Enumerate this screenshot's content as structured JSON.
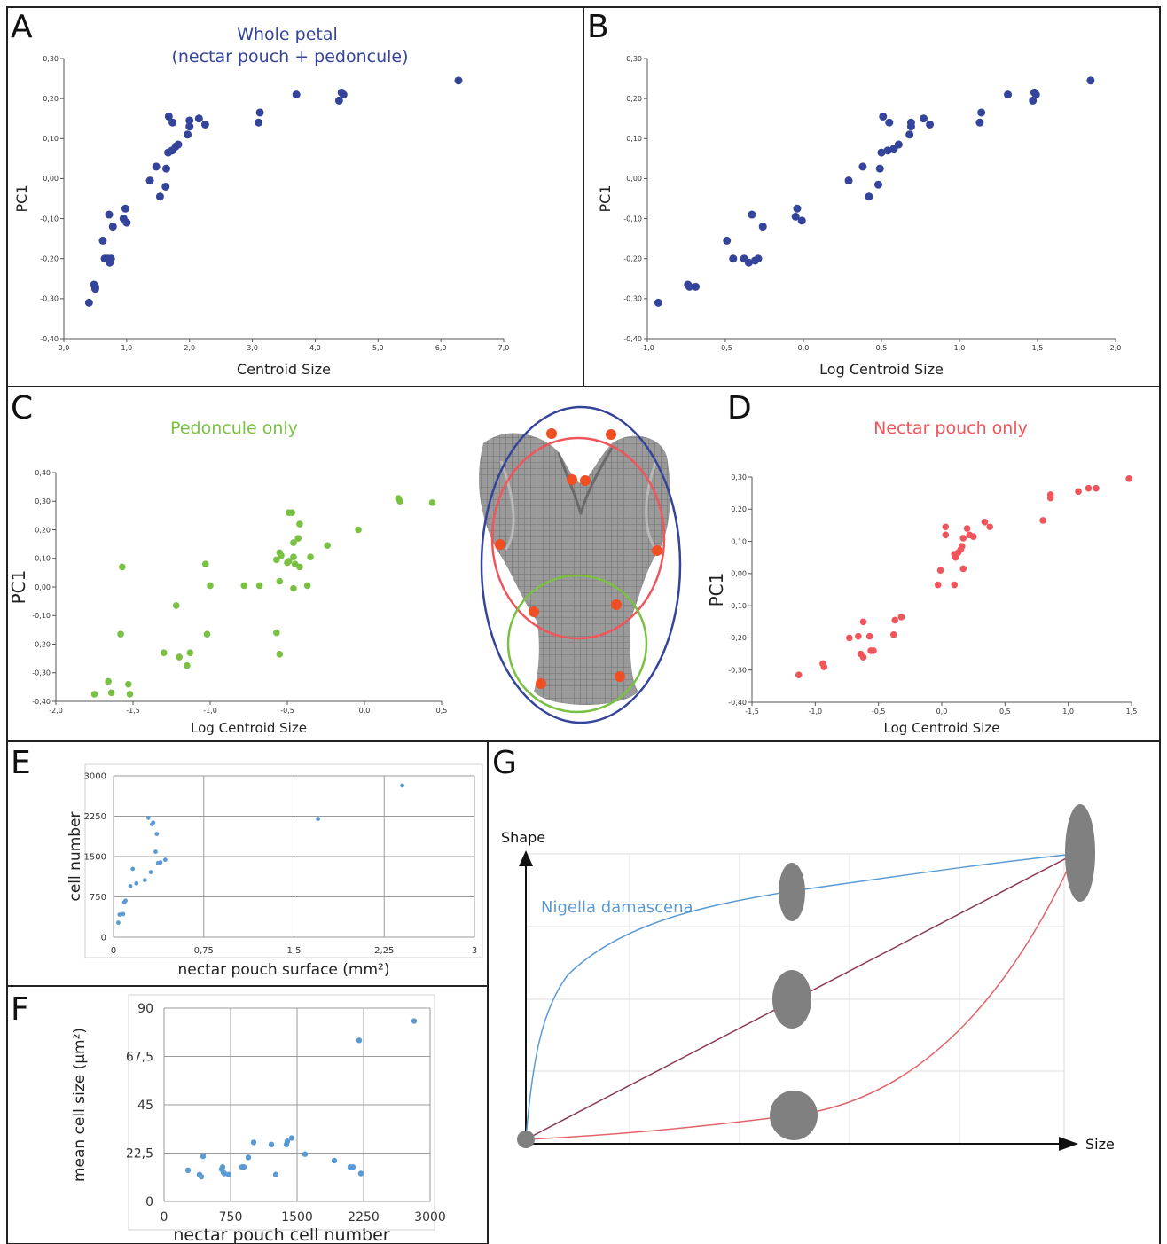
{
  "colors": {
    "blue": "#34449a",
    "green": "#7ac143",
    "red": "#f0555b",
    "lightblue": "#5b9bd5",
    "curve_red": "#e0646b",
    "gray": "#808080"
  },
  "chart_data": [
    {
      "panel": "A",
      "type": "scatter",
      "title": "Whole petal",
      "subtitle": "(nectar pouch + pedoncule)",
      "xlabel": "Centroid Size",
      "ylabel": "PC1",
      "xlim": [
        0,
        7
      ],
      "ylim": [
        -0.4,
        0.3
      ],
      "xticks": [
        "0,0",
        "1,0",
        "2,0",
        "3,0",
        "4,0",
        "5,0",
        "6,0",
        "7,0"
      ],
      "yticks": [
        "-0,40",
        "-0,30",
        "-0,20",
        "-0,10",
        "0,00",
        "0,10",
        "0,20",
        "0,30"
      ],
      "points": [
        [
          0.4,
          -0.31
        ],
        [
          0.48,
          -0.265
        ],
        [
          0.5,
          -0.275
        ],
        [
          0.5,
          -0.27
        ],
        [
          0.62,
          -0.155
        ],
        [
          0.65,
          -0.2
        ],
        [
          0.7,
          -0.2
        ],
        [
          0.72,
          -0.09
        ],
        [
          0.73,
          -0.21
        ],
        [
          0.75,
          -0.2
        ],
        [
          0.78,
          -0.12
        ],
        [
          0.95,
          -0.1
        ],
        [
          0.98,
          -0.075
        ],
        [
          1.0,
          -0.11
        ],
        [
          1.37,
          -0.005
        ],
        [
          1.47,
          0.03
        ],
        [
          1.53,
          -0.045
        ],
        [
          1.62,
          -0.02
        ],
        [
          1.63,
          0.025
        ],
        [
          1.66,
          0.065
        ],
        [
          1.67,
          0.155
        ],
        [
          1.72,
          0.07
        ],
        [
          1.73,
          0.14
        ],
        [
          1.78,
          0.08
        ],
        [
          1.82,
          0.085
        ],
        [
          1.97,
          0.11
        ],
        [
          2.0,
          0.145
        ],
        [
          2.0,
          0.13
        ],
        [
          2.15,
          0.15
        ],
        [
          2.25,
          0.135
        ],
        [
          3.1,
          0.14
        ],
        [
          3.12,
          0.165
        ],
        [
          3.7,
          0.21
        ],
        [
          4.38,
          0.195
        ],
        [
          4.42,
          0.215
        ],
        [
          4.45,
          0.21
        ],
        [
          6.28,
          0.245
        ]
      ]
    },
    {
      "panel": "B",
      "type": "scatter",
      "xlabel": "Log Centroid Size",
      "ylabel": "PC1",
      "xlim": [
        -1.0,
        2.0
      ],
      "ylim": [
        -0.4,
        0.3
      ],
      "xticks": [
        "-1,0",
        "-0,5",
        "0,0",
        "0,5",
        "1,0",
        "1,5",
        "2,0"
      ],
      "yticks": [
        "-0,40",
        "-0,30",
        "-0,20",
        "-0,10",
        "0,00",
        "0,10",
        "0,20",
        "0,30"
      ],
      "points": [
        [
          -0.93,
          -0.31
        ],
        [
          -0.74,
          -0.265
        ],
        [
          -0.73,
          -0.27
        ],
        [
          -0.69,
          -0.27
        ],
        [
          -0.49,
          -0.155
        ],
        [
          -0.45,
          -0.2
        ],
        [
          -0.38,
          -0.2
        ],
        [
          -0.35,
          -0.21
        ],
        [
          -0.33,
          -0.09
        ],
        [
          -0.31,
          -0.205
        ],
        [
          -0.29,
          -0.2
        ],
        [
          -0.26,
          -0.12
        ],
        [
          -0.05,
          -0.095
        ],
        [
          -0.04,
          -0.075
        ],
        [
          -0.01,
          -0.105
        ],
        [
          0.29,
          -0.005
        ],
        [
          0.38,
          0.03
        ],
        [
          0.42,
          -0.045
        ],
        [
          0.48,
          -0.015
        ],
        [
          0.49,
          0.025
        ],
        [
          0.5,
          0.065
        ],
        [
          0.51,
          0.155
        ],
        [
          0.54,
          0.07
        ],
        [
          0.55,
          0.14
        ],
        [
          0.58,
          0.075
        ],
        [
          0.61,
          0.085
        ],
        [
          0.68,
          0.11
        ],
        [
          0.69,
          0.14
        ],
        [
          0.69,
          0.13
        ],
        [
          0.77,
          0.15
        ],
        [
          0.81,
          0.135
        ],
        [
          1.13,
          0.14
        ],
        [
          1.14,
          0.165
        ],
        [
          1.31,
          0.21
        ],
        [
          1.47,
          0.195
        ],
        [
          1.48,
          0.215
        ],
        [
          1.49,
          0.21
        ],
        [
          1.84,
          0.245
        ]
      ]
    },
    {
      "panel": "C",
      "type": "scatter",
      "title": "Pedoncule only",
      "xlabel": "Log Centroid Size",
      "ylabel": "PC1",
      "xlim": [
        -2.0,
        0.5
      ],
      "ylim": [
        -0.4,
        0.4
      ],
      "xticks": [
        "-2,0",
        "-1,5",
        "-1,0",
        "-0,5",
        "0,0",
        "0,5"
      ],
      "yticks": [
        "-0,40",
        "-0,30",
        "-0,20",
        "-0,10",
        "0,00",
        "0,10",
        "0,20",
        "0,30",
        "0,40"
      ],
      "points": [
        [
          -1.75,
          -0.375
        ],
        [
          -1.66,
          -0.33
        ],
        [
          -1.64,
          -0.37
        ],
        [
          -1.58,
          -0.165
        ],
        [
          -1.57,
          0.07
        ],
        [
          -1.53,
          -0.34
        ],
        [
          -1.52,
          -0.375
        ],
        [
          -1.3,
          -0.23
        ],
        [
          -1.22,
          -0.065
        ],
        [
          -1.2,
          -0.245
        ],
        [
          -1.15,
          -0.275
        ],
        [
          -1.13,
          -0.23
        ],
        [
          -1.03,
          0.08
        ],
        [
          -1.02,
          -0.165
        ],
        [
          -1.0,
          0.005
        ],
        [
          -0.78,
          0.005
        ],
        [
          -0.68,
          0.005
        ],
        [
          -0.57,
          -0.16
        ],
        [
          -0.57,
          0.095
        ],
        [
          -0.55,
          -0.235
        ],
        [
          -0.55,
          0.12
        ],
        [
          -0.55,
          0.02
        ],
        [
          -0.54,
          0.11
        ],
        [
          -0.5,
          0.085
        ],
        [
          -0.49,
          0.26
        ],
        [
          -0.49,
          0.09
        ],
        [
          -0.47,
          0.26
        ],
        [
          -0.46,
          0.155
        ],
        [
          -0.46,
          0.105
        ],
        [
          -0.46,
          -0.005
        ],
        [
          -0.45,
          0.08
        ],
        [
          -0.43,
          0.17
        ],
        [
          -0.42,
          0.07
        ],
        [
          -0.42,
          0.22
        ],
        [
          -0.37,
          0.005
        ],
        [
          -0.35,
          0.105
        ],
        [
          -0.24,
          0.145
        ],
        [
          -0.04,
          0.2
        ],
        [
          0.22,
          0.31
        ],
        [
          0.23,
          0.3
        ],
        [
          0.44,
          0.295
        ]
      ]
    },
    {
      "panel": "D",
      "type": "scatter",
      "title": "Nectar pouch only",
      "xlabel": "Log Centroid Size",
      "ylabel": "PC1",
      "xlim": [
        -1.5,
        1.5
      ],
      "ylim": [
        -0.4,
        0.3
      ],
      "xticks": [
        "-1,5",
        "-1,0",
        "-0,5",
        "0,0",
        "0,5",
        "1,0",
        "1,5"
      ],
      "yticks": [
        "-0,40",
        "-0,30",
        "-0,20",
        "-0,10",
        "0,00",
        "0,10",
        "0,20",
        "0,30"
      ],
      "points": [
        [
          -1.13,
          -0.315
        ],
        [
          -0.94,
          -0.28
        ],
        [
          -0.93,
          -0.29
        ],
        [
          -0.73,
          -0.2
        ],
        [
          -0.66,
          -0.195
        ],
        [
          -0.64,
          -0.25
        ],
        [
          -0.62,
          -0.15
        ],
        [
          -0.62,
          -0.26
        ],
        [
          -0.57,
          -0.195
        ],
        [
          -0.56,
          -0.24
        ],
        [
          -0.54,
          -0.24
        ],
        [
          -0.38,
          -0.19
        ],
        [
          -0.37,
          -0.145
        ],
        [
          -0.32,
          -0.135
        ],
        [
          -0.03,
          -0.035
        ],
        [
          -0.01,
          0.01
        ],
        [
          0.03,
          0.145
        ],
        [
          0.03,
          0.12
        ],
        [
          0.1,
          -0.035
        ],
        [
          0.1,
          0.06
        ],
        [
          0.11,
          0.05
        ],
        [
          0.13,
          0.065
        ],
        [
          0.15,
          0.075
        ],
        [
          0.16,
          0.085
        ],
        [
          0.17,
          0.015
        ],
        [
          0.17,
          0.11
        ],
        [
          0.2,
          0.14
        ],
        [
          0.22,
          0.12
        ],
        [
          0.25,
          0.115
        ],
        [
          0.34,
          0.16
        ],
        [
          0.38,
          0.145
        ],
        [
          0.8,
          0.165
        ],
        [
          0.86,
          0.245
        ],
        [
          0.86,
          0.235
        ],
        [
          1.08,
          0.255
        ],
        [
          1.16,
          0.265
        ],
        [
          1.22,
          0.265
        ],
        [
          1.48,
          0.295
        ]
      ]
    },
    {
      "panel": "E",
      "type": "scatter",
      "xlabel": "nectar pouch surface (mm²)",
      "ylabel": "cell number",
      "xlim": [
        0,
        3
      ],
      "ylim": [
        0,
        3000
      ],
      "xticks": [
        "0",
        "0,75",
        "1,5",
        "2,25",
        "3"
      ],
      "yticks": [
        "0",
        "750",
        "1500",
        "2250",
        "3000"
      ],
      "points": [
        [
          0.04,
          270
        ],
        [
          0.05,
          420
        ],
        [
          0.08,
          430
        ],
        [
          0.09,
          650
        ],
        [
          0.1,
          680
        ],
        [
          0.14,
          950
        ],
        [
          0.16,
          1270
        ],
        [
          0.19,
          1000
        ],
        [
          0.26,
          1060
        ],
        [
          0.29,
          2220
        ],
        [
          0.31,
          1210
        ],
        [
          0.32,
          2100
        ],
        [
          0.33,
          2130
        ],
        [
          0.35,
          1590
        ],
        [
          0.36,
          1920
        ],
        [
          0.37,
          1380
        ],
        [
          0.39,
          1390
        ],
        [
          0.43,
          1440
        ],
        [
          1.7,
          2200
        ],
        [
          2.4,
          2820
        ]
      ]
    },
    {
      "panel": "F",
      "type": "scatter",
      "xlabel": "nectar pouch cell number",
      "ylabel": "mean cell size (µm²)",
      "xlim": [
        0,
        3000
      ],
      "ylim": [
        0,
        90
      ],
      "xticks": [
        "0",
        "750",
        "1500",
        "2250",
        "3000"
      ],
      "yticks": [
        "0",
        "22,5",
        "45",
        "67,5",
        "90"
      ],
      "points": [
        [
          270,
          14.5
        ],
        [
          400,
          12.5
        ],
        [
          420,
          11.5
        ],
        [
          440,
          21
        ],
        [
          650,
          15
        ],
        [
          660,
          16
        ],
        [
          670,
          13.5
        ],
        [
          680,
          13
        ],
        [
          730,
          12.5
        ],
        [
          880,
          16
        ],
        [
          900,
          16
        ],
        [
          950,
          20.5
        ],
        [
          1010,
          27.5
        ],
        [
          1210,
          26.5
        ],
        [
          1260,
          12.5
        ],
        [
          1380,
          26.5
        ],
        [
          1390,
          28
        ],
        [
          1440,
          29.5
        ],
        [
          1590,
          22
        ],
        [
          1920,
          19
        ],
        [
          2100,
          16
        ],
        [
          2130,
          16
        ],
        [
          2200,
          75
        ],
        [
          2220,
          13
        ],
        [
          2820,
          84
        ]
      ]
    },
    {
      "panel": "G",
      "type": "line",
      "xlabel": "Size",
      "ylabel": "Shape",
      "series": [
        {
          "name": "Nigella damascena"
        }
      ]
    }
  ]
}
